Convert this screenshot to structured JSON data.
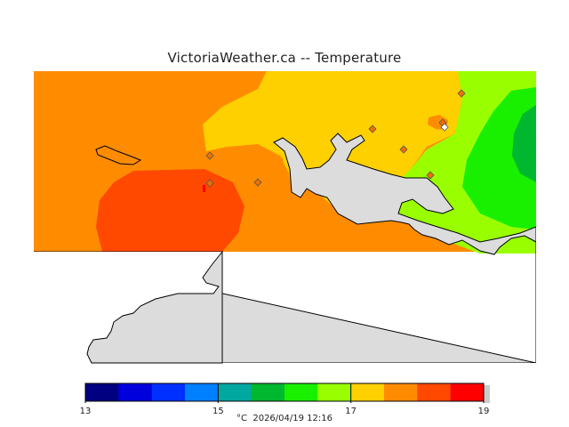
{
  "title": "VictoriaWeather.ca -- Temperature",
  "legend": {
    "unit": "°C",
    "timestamp": "2026/04/19 12:16",
    "min": 13,
    "max": 19,
    "ticks": [
      13,
      15,
      17,
      19
    ],
    "tick_labels": [
      "13",
      "15",
      "17",
      "19"
    ],
    "bands": [
      "#000080",
      "#0000dd",
      "#0030ff",
      "#0080ff",
      "#00a8a0",
      "#00b830",
      "#18f000",
      "#99ff00",
      "#ffd000",
      "#ff8c00",
      "#ff4800",
      "#ff0000"
    ]
  },
  "colors": {
    "land": "#dcdcdc",
    "coast": "#000000",
    "station": "#ee7000"
  },
  "zones": [
    {
      "name": "orange",
      "temperature_range": [
        18,
        18.5
      ],
      "color": "#ff8c00"
    },
    {
      "name": "red-orange",
      "temperature_range": [
        18.5,
        19
      ],
      "color": "#ff4800"
    },
    {
      "name": "yellow",
      "temperature_range": [
        17.5,
        18
      ],
      "color": "#ffd000"
    },
    {
      "name": "light-green",
      "temperature_range": [
        17,
        17.5
      ],
      "color": "#99ff00"
    },
    {
      "name": "green",
      "temperature_range": [
        16.5,
        17
      ],
      "color": "#18f000"
    },
    {
      "name": "dark-green",
      "temperature_range": [
        16,
        16.5
      ],
      "color": "#00b830"
    }
  ]
}
